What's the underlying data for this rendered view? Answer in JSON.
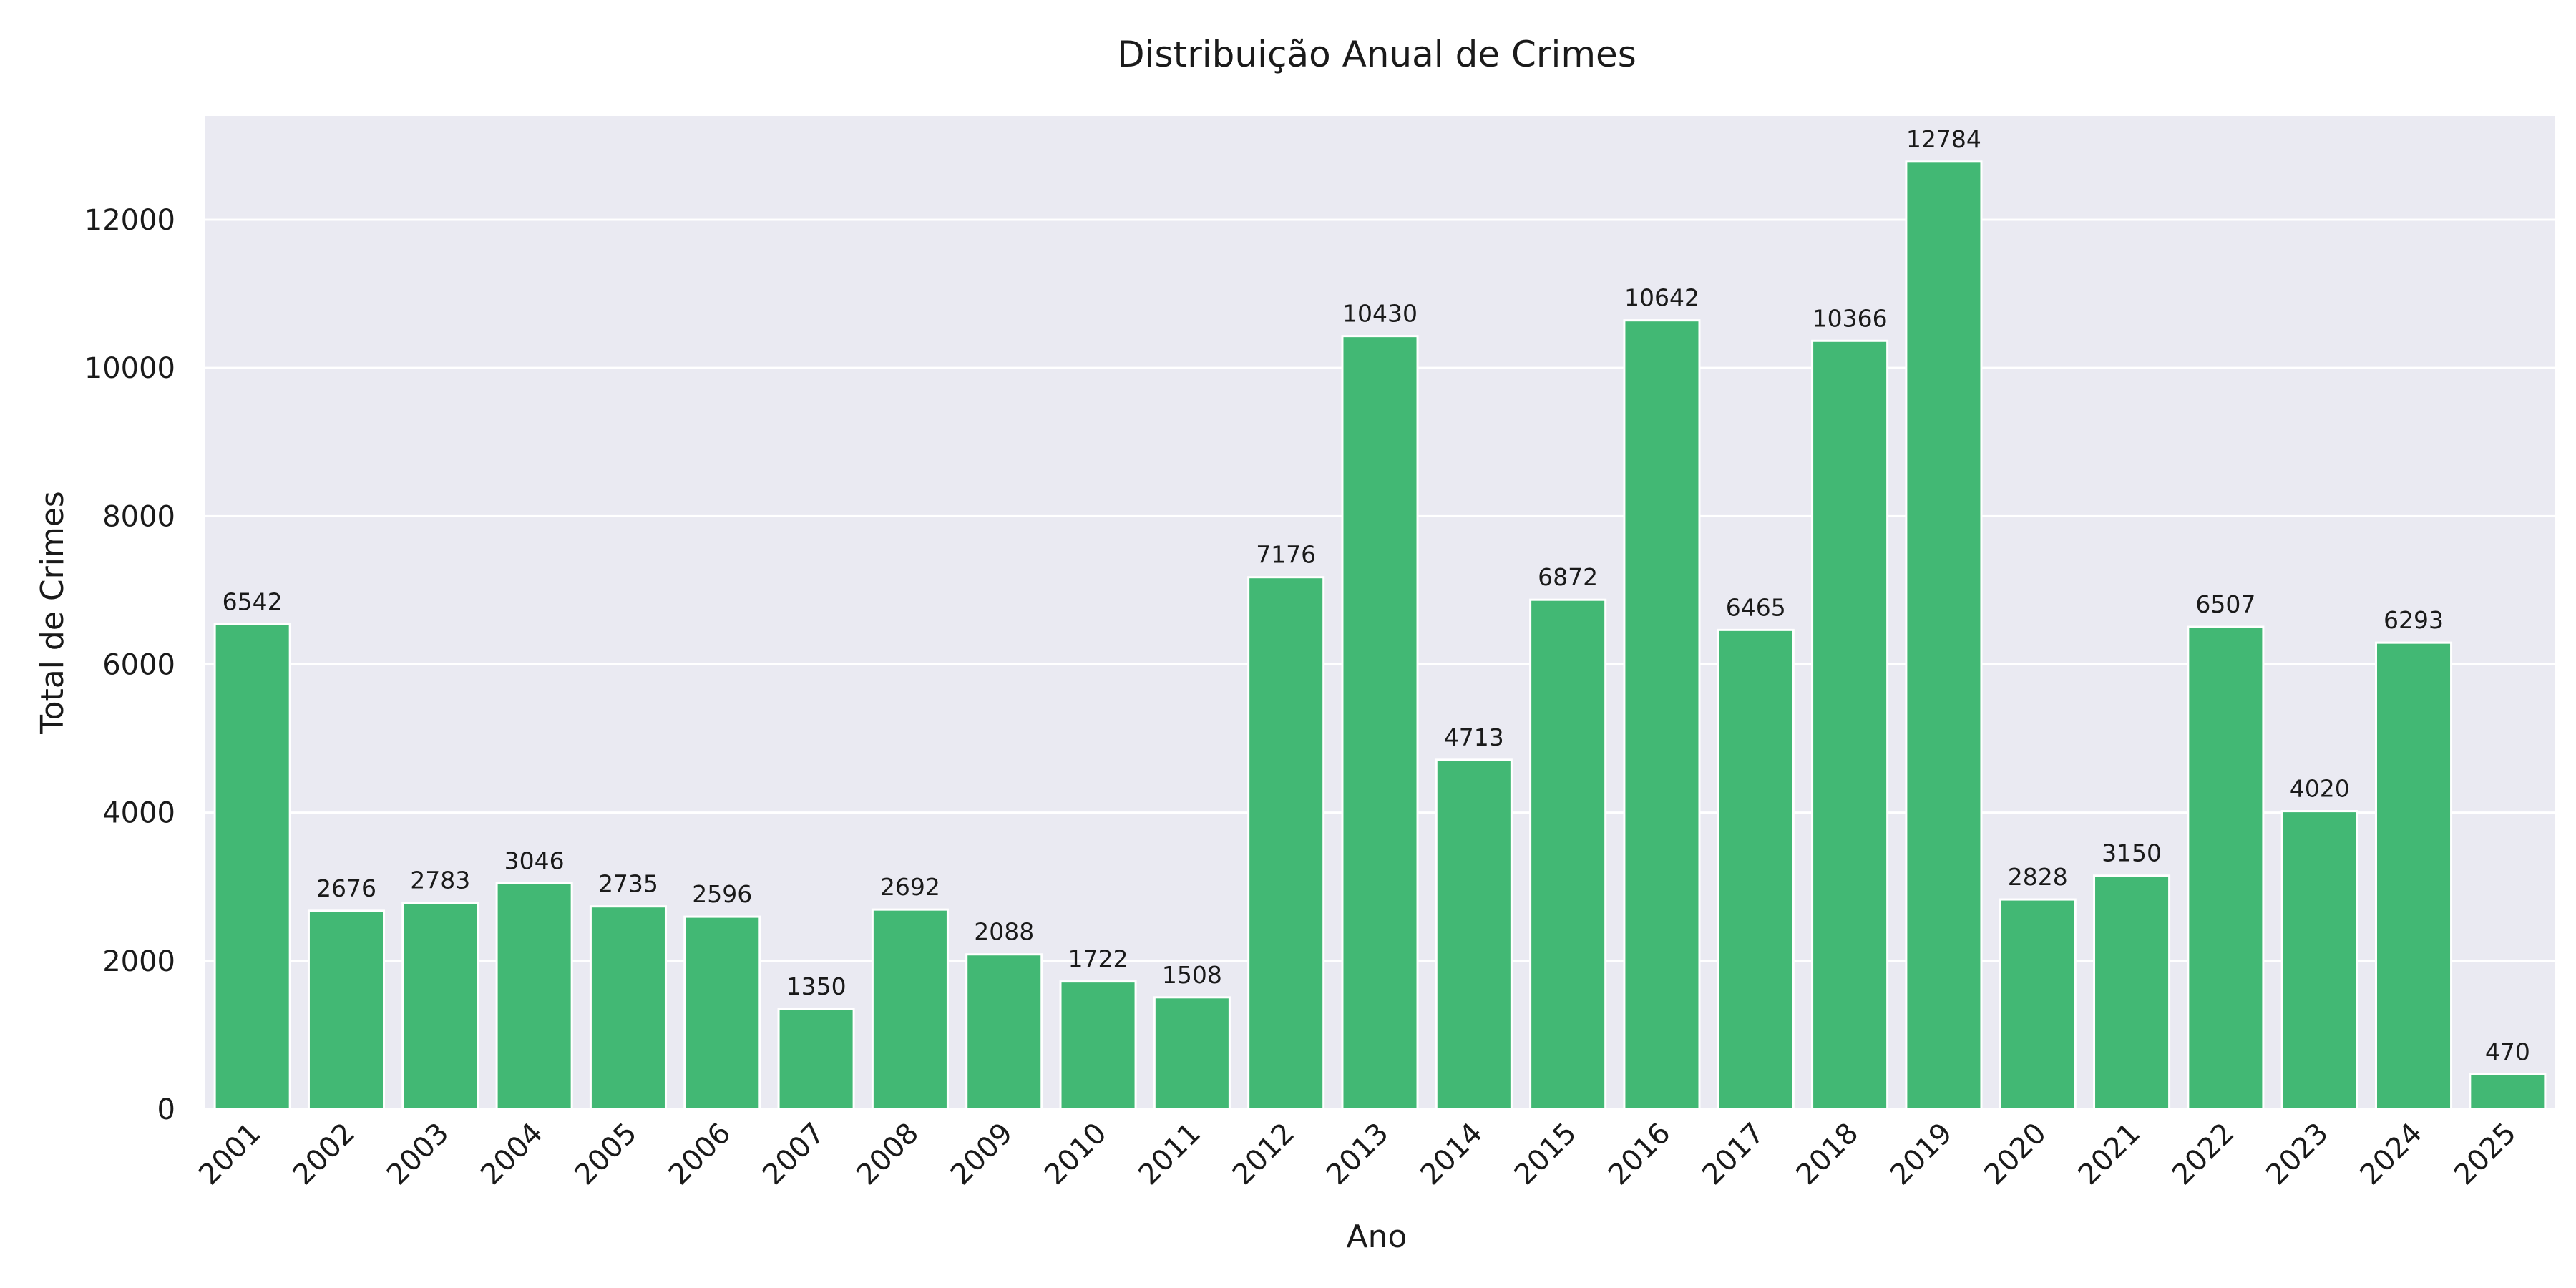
{
  "chart_data": {
    "type": "bar",
    "title": "Distribuição Anual de Crimes",
    "xlabel": "Ano",
    "ylabel": "Total de Crimes",
    "categories": [
      "2001",
      "2002",
      "2003",
      "2004",
      "2005",
      "2006",
      "2007",
      "2008",
      "2009",
      "2010",
      "2011",
      "2012",
      "2013",
      "2014",
      "2015",
      "2016",
      "2017",
      "2018",
      "2019",
      "2020",
      "2021",
      "2022",
      "2023",
      "2024",
      "2025"
    ],
    "values": [
      6542,
      2676,
      2783,
      3046,
      2735,
      2596,
      1350,
      2692,
      2088,
      1722,
      1508,
      7176,
      10430,
      4713,
      6872,
      10642,
      6465,
      10366,
      12784,
      2828,
      3150,
      6507,
      4020,
      6293,
      470
    ],
    "ylim": [
      0,
      13400
    ],
    "yticks": [
      0,
      2000,
      4000,
      6000,
      8000,
      10000,
      12000
    ],
    "grid": true,
    "colors": {
      "bar": "#42b874",
      "plot_bg": "#eaeaf2",
      "grid": "#ffffff"
    }
  }
}
